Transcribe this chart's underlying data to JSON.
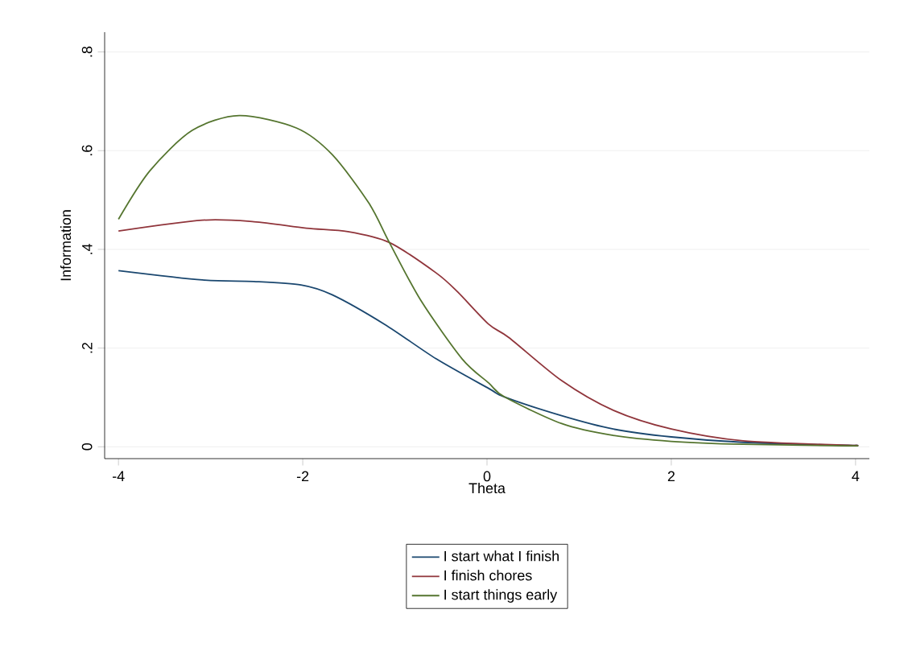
{
  "chart_data": {
    "type": "line",
    "xlabel": "Theta",
    "ylabel": "Information",
    "xlim": [
      -4.15,
      4.15
    ],
    "ylim": [
      -0.024,
      0.84
    ],
    "xticks": [
      -4,
      -2,
      0,
      2,
      4
    ],
    "yticks": [
      0,
      {
        "value": 0.2,
        "label": ".2"
      },
      {
        "value": 0.4,
        "label": ".4"
      },
      {
        "value": 0.6,
        "label": ".6"
      },
      {
        "value": 0.8,
        "label": ".8"
      }
    ],
    "grid": "y",
    "legend": "bottom",
    "marker": "none",
    "line_style": "solid",
    "series": [
      {
        "name": "I start what I finish",
        "color": "#1a476f",
        "x": [
          -4,
          -3.09,
          -2.53,
          -2.02,
          -1.68,
          -1.11,
          -0.55,
          0.02,
          0.19,
          0.81,
          1.37,
          2.0,
          2.78,
          3.92,
          4
        ],
        "values": [
          0.357,
          0.338,
          0.335,
          0.328,
          0.308,
          0.248,
          0.178,
          0.118,
          0.101,
          0.063,
          0.036,
          0.02,
          0.009,
          0.003,
          0.003
        ]
      },
      {
        "name": "I finish chores",
        "color": "#90353b",
        "x": [
          -4,
          -3.09,
          -2.53,
          -1.96,
          -1.51,
          -1.06,
          -0.55,
          -0.32,
          0.02,
          0.24,
          0.81,
          1.37,
          2.0,
          2.78,
          3.92,
          4
        ],
        "values": [
          0.437,
          0.459,
          0.456,
          0.443,
          0.436,
          0.414,
          0.352,
          0.314,
          0.248,
          0.221,
          0.134,
          0.074,
          0.036,
          0.012,
          0.003,
          0.003
        ]
      },
      {
        "name": "I start things early",
        "color": "#55752f",
        "x": [
          -4,
          -3.66,
          -3.2,
          -2.69,
          -2.07,
          -1.68,
          -1.28,
          -1.06,
          -0.72,
          -0.27,
          0.02,
          0.19,
          0.81,
          1.37,
          2.0,
          2.78,
          3.92,
          4
        ],
        "values": [
          0.461,
          0.559,
          0.641,
          0.671,
          0.646,
          0.592,
          0.493,
          0.414,
          0.297,
          0.178,
          0.129,
          0.101,
          0.047,
          0.023,
          0.011,
          0.005,
          0.002,
          0.002
        ]
      }
    ]
  }
}
